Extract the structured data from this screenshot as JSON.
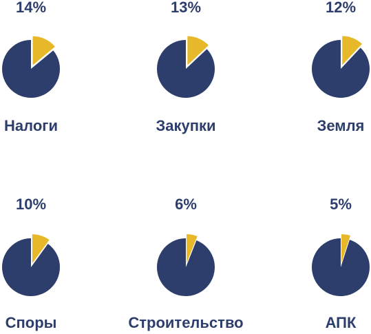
{
  "chart_data": [
    {
      "type": "pie",
      "title": "Налоги",
      "values": [
        14
      ],
      "value_labels": [
        "14%"
      ],
      "colors": [
        "#e6b82a",
        "#2d3e6c"
      ]
    },
    {
      "type": "pie",
      "title": "Закупки",
      "values": [
        13
      ],
      "value_labels": [
        "13%"
      ],
      "colors": [
        "#e6b82a",
        "#2d3e6c"
      ]
    },
    {
      "type": "pie",
      "title": "Земля",
      "values": [
        12
      ],
      "value_labels": [
        "12%"
      ],
      "colors": [
        "#e6b82a",
        "#2d3e6c"
      ]
    },
    {
      "type": "pie",
      "title": "Споры",
      "values": [
        10
      ],
      "value_labels": [
        "10%"
      ],
      "colors": [
        "#e6b82a",
        "#2d3e6c"
      ]
    },
    {
      "type": "pie",
      "title": "Строительство",
      "values": [
        6
      ],
      "value_labels": [
        "6%"
      ],
      "colors": [
        "#e6b82a",
        "#2d3e6c"
      ]
    },
    {
      "type": "pie",
      "title": "АПК",
      "values": [
        5
      ],
      "value_labels": [
        "5%"
      ],
      "colors": [
        "#e6b82a",
        "#2d3e6c"
      ]
    }
  ]
}
